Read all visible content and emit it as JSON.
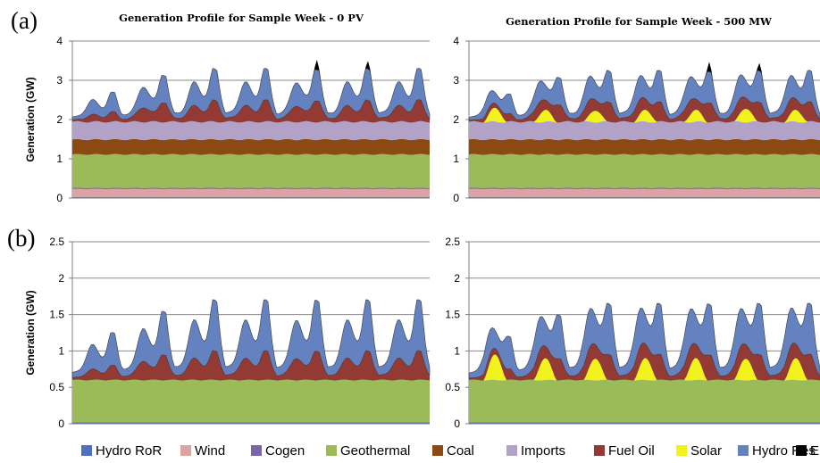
{
  "figure": {
    "panel_labels": [
      "(a)",
      "(b)"
    ]
  },
  "legend": [
    {
      "name": "Hydro RoR",
      "color": "#4f6fc0"
    },
    {
      "name": "Wind",
      "color": "#dba3a3"
    },
    {
      "name": "Cogen",
      "color": "#7d63a8"
    },
    {
      "name": "Geothermal",
      "color": "#9bbb59"
    },
    {
      "name": "Coal",
      "color": "#8b4a13"
    },
    {
      "name": "Imports",
      "color": "#b3a2c7"
    },
    {
      "name": "Fuel Oil",
      "color": "#943a34"
    },
    {
      "name": "Solar",
      "color": "#f2f21c"
    },
    {
      "name": "Hydro Res",
      "color": "#6481c0"
    },
    {
      "name": "ENS",
      "color": "#000000"
    }
  ],
  "chart_data": [
    {
      "id": "a-left",
      "type": "area",
      "title": "Generation Profile for Sample Week - 0 PV",
      "ylabel": "Generation (GW)",
      "ylim": [
        0,
        4
      ],
      "yticks": [
        "0",
        "1",
        "2",
        "3",
        "4"
      ],
      "grid": true,
      "x_hours": 168,
      "daily_peaks_gw": [
        2.4,
        3.0,
        3.4,
        3.4,
        3.6,
        3.6,
        3.4
      ],
      "series": [
        {
          "name": "Hydro RoR",
          "values": [
            0.03
          ]
        },
        {
          "name": "Wind",
          "values": [
            0.2
          ]
        },
        {
          "name": "Cogen",
          "values": [
            0.03
          ]
        },
        {
          "name": "Geothermal",
          "values": [
            0.85
          ]
        },
        {
          "name": "Coal",
          "values": [
            0.38
          ]
        },
        {
          "name": "Imports",
          "values": [
            0.45
          ]
        },
        {
          "name": "Fuel Oil",
          "values": [
            0.25,
            0.5,
            0.55,
            0.55,
            0.55,
            0.55,
            0.55
          ]
        },
        {
          "name": "Hydro Res",
          "values": [
            0.5,
            0.7,
            0.8,
            0.8,
            0.8,
            0.8,
            0.8
          ]
        },
        {
          "name": "ENS",
          "values": [
            0,
            0,
            0,
            0,
            0.25,
            0.2,
            0
          ]
        }
      ]
    },
    {
      "id": "a-right",
      "type": "area",
      "title": "Generation Profile for Sample Week - 500 MW",
      "ylabel": "",
      "ylim": [
        0,
        4
      ],
      "yticks": [
        "0",
        "1",
        "2",
        "3",
        "4"
      ],
      "grid": true,
      "x_hours": 168,
      "daily_peaks_gw": [
        2.4,
        3.0,
        3.4,
        3.4,
        3.6,
        3.6,
        3.4
      ],
      "series": [
        {
          "name": "Hydro RoR",
          "values": [
            0.03
          ]
        },
        {
          "name": "Wind",
          "values": [
            0.2
          ]
        },
        {
          "name": "Cogen",
          "values": [
            0.03
          ]
        },
        {
          "name": "Geothermal",
          "values": [
            0.85
          ]
        },
        {
          "name": "Coal",
          "values": [
            0.38
          ]
        },
        {
          "name": "Imports",
          "values": [
            0.45
          ]
        },
        {
          "name": "Solar",
          "values": [
            0.35,
            0.3,
            0.3,
            0.3,
            0.3,
            0.35,
            0.3
          ]
        },
        {
          "name": "Fuel Oil",
          "values": [
            0.2,
            0.45,
            0.5,
            0.5,
            0.5,
            0.5,
            0.5
          ]
        },
        {
          "name": "Hydro Res",
          "values": [
            0.5,
            0.7,
            0.8,
            0.8,
            0.8,
            0.8,
            0.8
          ]
        },
        {
          "name": "ENS",
          "values": [
            0,
            0,
            0,
            0,
            0.25,
            0.2,
            0
          ]
        }
      ]
    },
    {
      "id": "b-left",
      "type": "area",
      "title": "",
      "ylabel": "Generation (GW)",
      "ylim": [
        0,
        2.5
      ],
      "yticks": [
        "0",
        "0.5",
        "1",
        "1.5",
        "2",
        "2.5"
      ],
      "grid": true,
      "x_hours": 168,
      "daily_peaks_gw": [
        1.3,
        1.6,
        1.85,
        1.85,
        1.95,
        1.9,
        1.85
      ],
      "series": [
        {
          "name": "Hydro RoR",
          "values": [
            0.02
          ]
        },
        {
          "name": "Geothermal",
          "values": [
            0.58
          ]
        },
        {
          "name": "Fuel Oil",
          "values": [
            0.2,
            0.35,
            0.4,
            0.4,
            0.4,
            0.4,
            0.4
          ]
        },
        {
          "name": "Hydro Res",
          "values": [
            0.45,
            0.6,
            0.7,
            0.7,
            0.7,
            0.7,
            0.7
          ]
        }
      ]
    },
    {
      "id": "b-right",
      "type": "area",
      "title": "",
      "ylabel": "",
      "ylim": [
        0,
        2.5
      ],
      "yticks": [
        "0",
        "0.5",
        "1",
        "1.5",
        "2",
        "2.5"
      ],
      "grid": true,
      "x_hours": 168,
      "daily_peaks_gw": [
        1.3,
        1.6,
        1.85,
        1.85,
        1.95,
        1.9,
        1.85
      ],
      "series": [
        {
          "name": "Hydro RoR",
          "values": [
            0.02
          ]
        },
        {
          "name": "Geothermal",
          "values": [
            0.58
          ]
        },
        {
          "name": "Solar",
          "values": [
            0.35,
            0.3,
            0.3,
            0.3,
            0.3,
            0.3,
            0.3
          ]
        },
        {
          "name": "Fuel Oil",
          "values": [
            0.15,
            0.3,
            0.35,
            0.35,
            0.35,
            0.35,
            0.35
          ]
        },
        {
          "name": "Hydro Res",
          "values": [
            0.45,
            0.6,
            0.7,
            0.7,
            0.7,
            0.7,
            0.7
          ]
        }
      ]
    }
  ]
}
